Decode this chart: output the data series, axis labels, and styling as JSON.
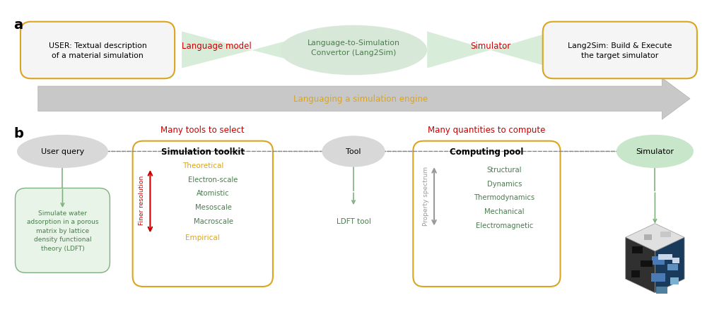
{
  "panel_a_label": "a",
  "panel_b_label": "b",
  "box1_text": "USER: Textual description\nof a material simulation",
  "box2_text": "Language-to-Simulation\nConvertor (Lang2Sim)",
  "box3_text": "Lang2Sim: Build & Execute\nthe target simulator",
  "lm_label": "Language model",
  "sim_label": "Simulator",
  "arrow_label": "Languaging a simulation engine",
  "user_query_text": "User query",
  "many_tools_text": "Many tools to select",
  "tool_text": "Tool",
  "many_qty_text": "Many quantities to compute",
  "simulator_b_text": "Simulator",
  "sim_toolkit_title": "Simulation toolkit",
  "computing_pool_title": "Computing pool",
  "ldft_tool_text": "LDFT tool",
  "user_desc_text": "Simulate water\nadsorption in a porous\nmatrix by lattice\ndensity functional\ntheory (LDFT)",
  "theoretical_text": "Theoretical",
  "empirical_text": "Empirical",
  "finer_res_text": "Finer resolution",
  "property_spectrum_text": "Property spectrum",
  "sim_levels": [
    "Electron-scale",
    "Atomistic",
    "Mesoscale",
    "Macroscale"
  ],
  "compute_items": [
    "Structural",
    "Dynamics",
    "Thermodynamics",
    "Mechanical",
    "Electromagnetic"
  ],
  "box_border_color": "#DAA520",
  "green_fill": "#d4edda",
  "green_text": "#4a7c4e",
  "red_text": "#cc0000",
  "gray_fill": "#d0d0d0",
  "light_gray": "#e8e8e8",
  "arrow_gray": "#999999",
  "bg_color": "#ffffff"
}
